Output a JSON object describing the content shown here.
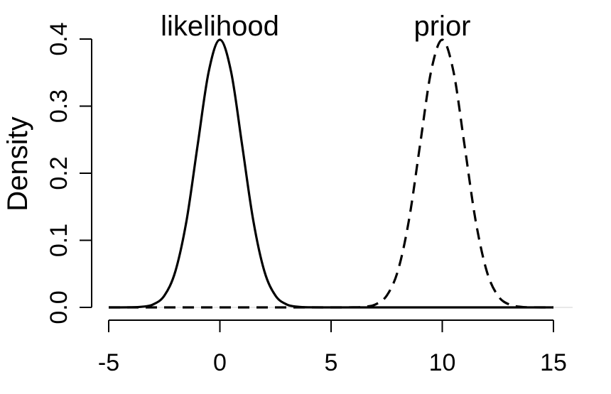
{
  "chart_data": {
    "type": "line",
    "title": "",
    "xlabel": "",
    "ylabel": "Density",
    "xlim": [
      -5,
      15
    ],
    "ylim": [
      0,
      0.4
    ],
    "grid": false,
    "x_ticks": [
      "-5",
      "0",
      "5",
      "10",
      "15"
    ],
    "y_ticks": [
      "0.0",
      "0.1",
      "0.2",
      "0.3",
      "0.4"
    ],
    "annotations": [
      {
        "text": "likelihood",
        "x": 0,
        "y": 0.41
      },
      {
        "text": "prior",
        "x": 10,
        "y": 0.41
      }
    ],
    "series": [
      {
        "style": "solid",
        "x": [
          -5,
          -4,
          -3.5,
          -3,
          -2.5,
          -2,
          -1.5,
          -1,
          -0.5,
          0,
          0.5,
          1,
          1.5,
          2,
          2.5,
          3,
          3.5,
          4,
          5,
          6,
          7,
          8,
          9,
          10,
          11,
          12,
          13,
          14,
          15
        ],
        "y": [
          0.0,
          0.0001,
          0.0009,
          0.0044,
          0.0175,
          0.054,
          0.1295,
          0.242,
          0.3521,
          0.3989,
          0.3521,
          0.242,
          0.1295,
          0.054,
          0.0175,
          0.0044,
          0.0009,
          0.0001,
          0.0,
          0.0,
          0.0,
          0.0,
          0.0,
          0.0,
          0.0,
          0.0,
          0.0,
          0.0,
          0.0
        ]
      },
      {
        "style": "dashed",
        "x": [
          -5,
          -4,
          -3,
          -2,
          -1,
          0,
          1,
          2,
          3,
          4,
          5,
          6,
          6.5,
          7,
          7.5,
          8,
          8.5,
          9,
          9.5,
          10,
          10.5,
          11,
          11.5,
          12,
          12.5,
          13,
          13.5,
          14,
          15
        ],
        "y": [
          0.0,
          0.0,
          0.0,
          0.0,
          0.0,
          0.0,
          0.0,
          0.0,
          0.0,
          0.0,
          0.0,
          0.0001,
          0.0009,
          0.0044,
          0.0175,
          0.054,
          0.1295,
          0.242,
          0.3521,
          0.3989,
          0.3521,
          0.242,
          0.1295,
          0.054,
          0.0175,
          0.0044,
          0.0009,
          0.0001,
          0.0
        ]
      }
    ]
  }
}
